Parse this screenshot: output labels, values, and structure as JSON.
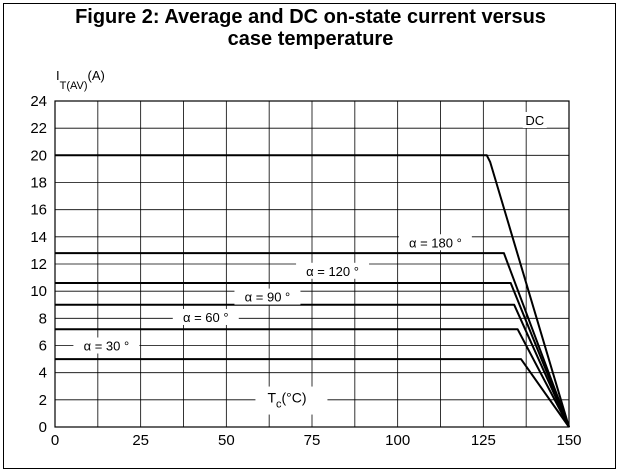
{
  "figure": {
    "title_line1": "Figure 2: Average and DC on-state current versus",
    "title_line2": "case temperature"
  },
  "chart_data": {
    "type": "line",
    "title": "Figure 2: Average and DC on-state current versus case temperature",
    "ylabel_main": "I",
    "ylabel_sub": "T(AV)",
    "ylabel_unit": "(A)",
    "xlabel_main": "T",
    "xlabel_sub": "c",
    "xlabel_unit": "(°C)",
    "xlim": [
      0,
      150
    ],
    "ylim": [
      0,
      24
    ],
    "xticks": [
      0,
      25,
      50,
      75,
      100,
      125,
      150
    ],
    "yticks": [
      0,
      2,
      4,
      6,
      8,
      10,
      12,
      14,
      16,
      18,
      20,
      22,
      24
    ],
    "grid": true,
    "series": [
      {
        "name": "DC",
        "x": [
          0,
          126,
          127,
          150
        ],
        "y": [
          20,
          20,
          19.5,
          0
        ]
      },
      {
        "name": "α = 180 °",
        "x": [
          0,
          131,
          150
        ],
        "y": [
          12.8,
          12.8,
          0
        ]
      },
      {
        "name": "α = 120 °",
        "x": [
          0,
          133,
          150
        ],
        "y": [
          10.6,
          10.6,
          0
        ]
      },
      {
        "name": "α = 90 °",
        "x": [
          0,
          134,
          150
        ],
        "y": [
          9.0,
          9.0,
          0
        ]
      },
      {
        "name": "α = 60 °",
        "x": [
          0,
          135,
          150
        ],
        "y": [
          7.2,
          7.2,
          0
        ]
      },
      {
        "name": "α = 30 °",
        "x": [
          0,
          136,
          150
        ],
        "y": [
          5.0,
          5.0,
          0
        ]
      }
    ],
    "annotations": [
      "DC",
      "α = 180 °",
      "α = 120 °",
      "α = 90 °",
      "α = 60 °",
      "α = 30 °"
    ]
  }
}
